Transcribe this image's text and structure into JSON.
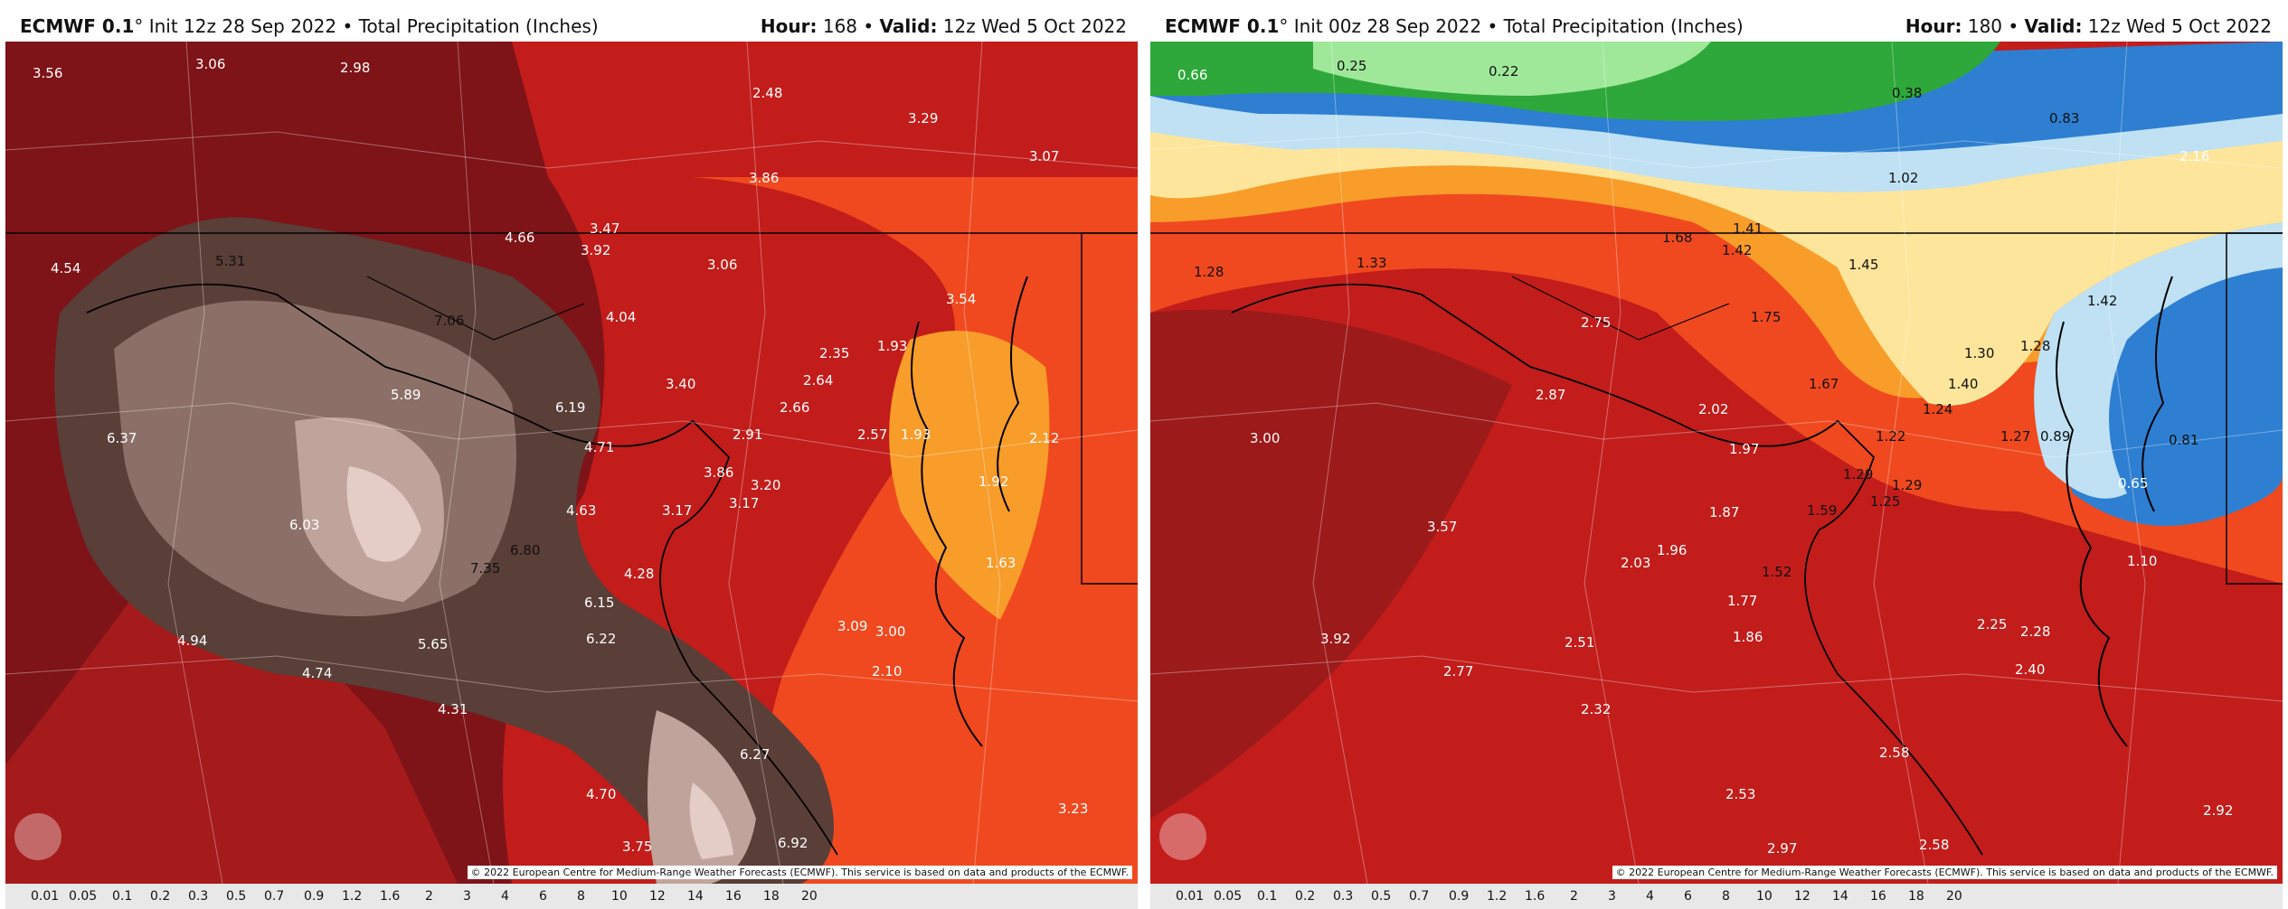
{
  "panels": [
    {
      "model": "ECMWF 0.1",
      "degree": "°",
      "init": " Init 12z 28 Sep 2022",
      "sep": " • ",
      "field": "Total Precipitation (Inches)",
      "hour_label": "Hour:",
      "hour": " 168",
      "valid_label": "Valid:",
      "valid": " 12z Wed 5 Oct 2022",
      "credit": "© 2022 European Centre for Medium-Range Weather Forecasts (ECMWF). This service is based on data and products of the ECMWF.",
      "values": [
        "3.56",
        "3.06",
        "2.98",
        "2.48",
        "3.29",
        "3.07",
        "3.86",
        "4.54",
        "5.31",
        "4.66",
        "3.47",
        "3.92",
        "3.06",
        "7.06",
        "4.04",
        "3.54",
        "2.35",
        "1.93",
        "5.89",
        "6.19",
        "3.40",
        "2.64",
        "6.37",
        "2.66",
        "2.91",
        "2.57",
        "1.93",
        "2.12",
        "4.71",
        "3.86",
        "3.20",
        "3.17",
        "1.92",
        "4.63",
        "3.17",
        "6.03",
        "6.80",
        "7.35",
        "4.28",
        "1.63",
        "6.15",
        "3.09",
        "3.00",
        "6.22",
        "4.94",
        "5.65",
        "4.74",
        "2.10",
        "4.31",
        "6.27",
        "4.70",
        "3.23",
        "3.75",
        "6.92"
      ]
    },
    {
      "model": "ECMWF 0.1",
      "degree": "°",
      "init": " Init 00z 28 Sep 2022",
      "sep": " • ",
      "field": "Total Precipitation (Inches)",
      "hour_label": "Hour:",
      "hour": " 180",
      "valid_label": "Valid:",
      "valid": " 12z Wed 5 Oct 2022",
      "credit": "© 2022 European Centre for Medium-Range Weather Forecasts (ECMWF). This service is based on data and products of the ECMWF.",
      "values": [
        "0.66",
        "0.25",
        "0.22",
        "0.38",
        "0.83",
        "2.16",
        "1.02",
        "1.68",
        "1.41",
        "1.42",
        "1.45",
        "1.28",
        "1.33",
        "1.75",
        "1.42",
        "2.75",
        "1.30",
        "1.28",
        "2.87",
        "1.67",
        "1.40",
        "2.02",
        "1.24",
        "3.00",
        "1.97",
        "1.22",
        "1.27",
        "0.89",
        "0.81",
        "1.29",
        "1.29",
        "1.25",
        "0.65",
        "1.87",
        "1.59",
        "3.57",
        "1.96",
        "1.10",
        "2.03",
        "1.52",
        "1.77",
        "2.25",
        "2.28",
        "3.92",
        "1.86",
        "2.51",
        "2.77",
        "2.40",
        "2.32",
        "2.58",
        "2.53",
        "2.92",
        "2.97",
        "2.58"
      ]
    }
  ],
  "scale_labels": [
    "0.01",
    "0.05",
    "0.1",
    "0.2",
    "0.3",
    "0.5",
    "0.7",
    "0.9",
    "1.2",
    "1.6",
    "2",
    "3",
    "4",
    "6",
    "8",
    "10",
    "12",
    "14",
    "16",
    "18",
    "20"
  ],
  "colors": {
    "dark_red": "#7e1318",
    "red": "#c21d1b",
    "orange": "#f0491f",
    "amber": "#f89c2a",
    "light_yellow": "#fde59b",
    "light_blue": "#bfe1f3",
    "blue": "#2e7fd2",
    "green": "#2ea83a",
    "light_green": "#9fe89a",
    "brown_dark": "#5a3e38",
    "brown_mid": "#8c7068",
    "brown_light": "#c0a49b",
    "brown_pale": "#e3cdc6"
  }
}
